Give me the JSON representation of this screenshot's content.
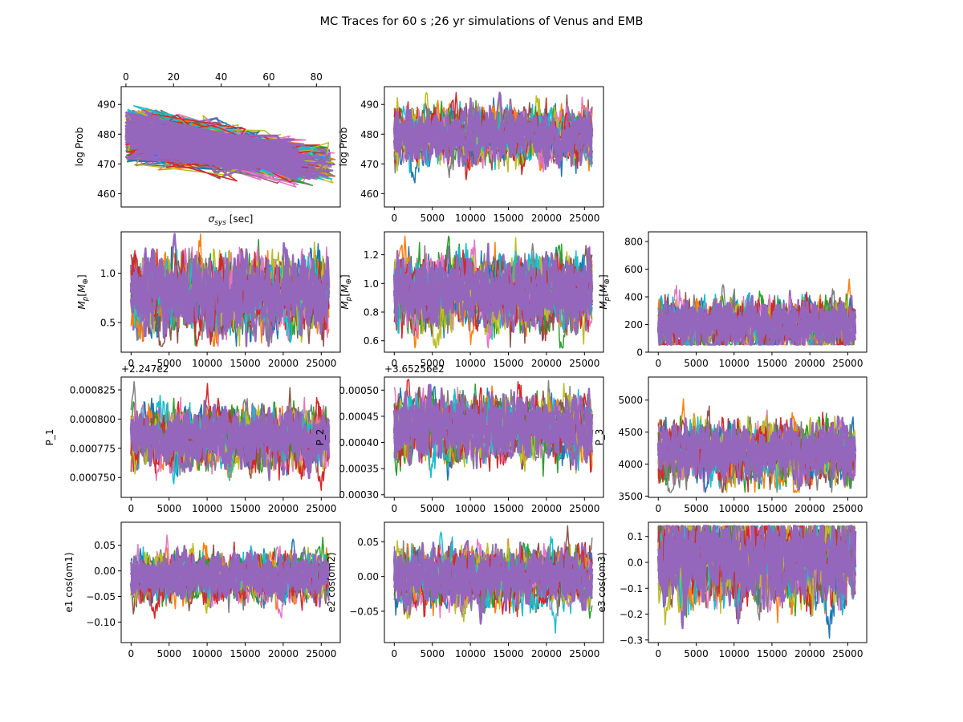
{
  "figure": {
    "title": "MC Traces for 60 s ;26 yr simulations of Venus and EMB"
  },
  "colors": {
    "palette": [
      "#1f77b4",
      "#ff7f0e",
      "#2ca02c",
      "#d62728",
      "#9467bd",
      "#8c564b",
      "#e377c2",
      "#7f7f7f",
      "#bcbd22",
      "#17becf"
    ],
    "frame": "#000000"
  },
  "chart_data": [
    {
      "id": "sigma-logprob",
      "type": "line",
      "description_of_marks": "log Prob plotted against sigma_sys for many walkers",
      "xlabel": "σsys [sec]",
      "xlabel_main": "σ",
      "xlabel_sub": "sys",
      "xlabel_rest": " [sec]",
      "ylabel": "log Prob",
      "xlim": [
        -2,
        90
      ],
      "ylim": [
        455.5,
        496
      ],
      "x_ticks": [
        0,
        20,
        40,
        60,
        80
      ],
      "x_ticks_position": "top",
      "y_ticks": [
        460,
        470,
        480,
        490
      ],
      "series_profile": {
        "x_range": [
          0,
          88
        ],
        "y_center_start": 480,
        "y_center_end": 469,
        "y_spread": 10,
        "y_peak": 494.5,
        "y_min": 458.5
      }
    },
    {
      "id": "trace-logprob",
      "type": "line",
      "ylabel": "log Prob",
      "xlim": [
        -1300,
        27500
      ],
      "ylim": [
        455.5,
        496
      ],
      "x_ticks": [
        0,
        5000,
        10000,
        15000,
        20000,
        25000
      ],
      "y_ticks": [
        460,
        470,
        480,
        490
      ],
      "series_profile": {
        "center": 480,
        "spread": 9,
        "min": 458,
        "max": 494
      }
    },
    {
      "id": "trace-mp1",
      "type": "line",
      "ylabel": "Mp[M⊕]",
      "xlim": [
        -1300,
        27500
      ],
      "ylim": [
        0.2,
        1.42
      ],
      "x_ticks": [
        0,
        5000,
        10000,
        15000,
        20000,
        25000
      ],
      "y_ticks": [
        0.5,
        1.0
      ],
      "y_tick_labels": [
        "0.5",
        "1.0"
      ],
      "series_profile": {
        "center": 0.8,
        "spread": 0.38,
        "min": 0.26,
        "max": 1.4
      }
    },
    {
      "id": "trace-mp2",
      "type": "line",
      "ylabel": "Mp[M⊕]",
      "xlim": [
        -1300,
        27500
      ],
      "ylim": [
        0.52,
        1.36
      ],
      "x_ticks": [
        0,
        5000,
        10000,
        15000,
        20000,
        25000
      ],
      "y_ticks": [
        0.6,
        0.8,
        1.0,
        1.2
      ],
      "y_tick_labels": [
        "0.6",
        "0.8",
        "1.0",
        "1.2"
      ],
      "series_profile": {
        "center": 0.95,
        "spread": 0.25,
        "min": 0.55,
        "max": 1.33
      }
    },
    {
      "id": "trace-mp3",
      "type": "line",
      "ylabel": "Mp[M⊕]",
      "xlim": [
        -1300,
        27500
      ],
      "ylim": [
        0,
        870
      ],
      "x_ticks": [
        0,
        5000,
        10000,
        15000,
        20000,
        25000
      ],
      "y_ticks": [
        0,
        200,
        400,
        600,
        800
      ],
      "y_tick_labels": [
        "0",
        "200",
        "400",
        "600",
        "800"
      ],
      "series_profile": {
        "center": 200,
        "spread": 180,
        "min": 55,
        "max": 840
      }
    },
    {
      "id": "trace-p1",
      "type": "line",
      "ylabel": "P_1",
      "offset_text": "+2.247e2",
      "xlim": [
        -1300,
        27500
      ],
      "ylim": [
        0.000733,
        0.000836
      ],
      "x_ticks": [
        0,
        5000,
        10000,
        15000,
        20000,
        25000
      ],
      "y_ticks": [
        0.00075,
        0.000775,
        0.0008,
        0.000825
      ],
      "y_tick_labels": [
        "0.000750",
        "0.000775",
        "0.000800",
        "0.000825"
      ],
      "series_profile": {
        "center": 0.000785,
        "spread": 2.5e-05,
        "min": 0.000737,
        "max": 0.000832
      }
    },
    {
      "id": "trace-p2",
      "type": "line",
      "ylabel": "P_2",
      "offset_text": "+3.65256e2",
      "xlim": [
        -1300,
        27500
      ],
      "ylim": [
        0.000295,
        0.000525
      ],
      "x_ticks": [
        0,
        5000,
        10000,
        15000,
        20000,
        25000
      ],
      "y_ticks": [
        0.0003,
        0.00035,
        0.0004,
        0.00045,
        0.0005
      ],
      "y_tick_labels": [
        "0.00030",
        "0.00035",
        "0.00040",
        "0.00045",
        "0.00050"
      ],
      "series_profile": {
        "center": 0.00043,
        "spread": 6e-05,
        "min": 0.000305,
        "max": 0.00052
      }
    },
    {
      "id": "trace-p3",
      "type": "line",
      "ylabel": "P_3",
      "xlim": [
        -1300,
        27500
      ],
      "ylim": [
        3480,
        5360
      ],
      "x_ticks": [
        0,
        5000,
        10000,
        15000,
        20000,
        25000
      ],
      "y_ticks": [
        3500,
        4000,
        4500,
        5000
      ],
      "y_tick_labels": [
        "3500",
        "4000",
        "4500",
        "5000"
      ],
      "series_profile": {
        "center": 4200,
        "spread": 450,
        "min": 3560,
        "max": 5270
      }
    },
    {
      "id": "trace-e1",
      "type": "line",
      "ylabel": "e1 cos(om1)",
      "xlim": [
        -1300,
        27500
      ],
      "ylim": [
        -0.14,
        0.095
      ],
      "x_ticks": [
        0,
        5000,
        10000,
        15000,
        20000,
        25000
      ],
      "y_ticks": [
        -0.1,
        -0.05,
        0.0,
        0.05
      ],
      "y_tick_labels": [
        "−0.10",
        "−0.05",
        "0.00",
        "0.05"
      ],
      "series_profile": {
        "center": -0.01,
        "spread": 0.045,
        "min": -0.13,
        "max": 0.08
      }
    },
    {
      "id": "trace-e2",
      "type": "line",
      "ylabel": "e2 cos(om2)",
      "xlim": [
        -1300,
        27500
      ],
      "ylim": [
        -0.095,
        0.078
      ],
      "x_ticks": [
        0,
        5000,
        10000,
        15000,
        20000,
        25000
      ],
      "y_ticks": [
        -0.05,
        0.0,
        0.05
      ],
      "y_tick_labels": [
        "−0.05",
        "0.00",
        "0.05"
      ],
      "series_profile": {
        "center": 0.0,
        "spread": 0.04,
        "min": -0.09,
        "max": 0.075
      }
    },
    {
      "id": "trace-e3",
      "type": "line",
      "ylabel": "e3 cos(om3)",
      "xlim": [
        -1300,
        27500
      ],
      "ylim": [
        -0.31,
        0.155
      ],
      "x_ticks": [
        0,
        5000,
        10000,
        15000,
        20000,
        25000
      ],
      "y_ticks": [
        -0.3,
        -0.2,
        -0.1,
        0.0,
        0.1
      ],
      "y_tick_labels": [
        "−0.3",
        "−0.2",
        "−0.1",
        "0.0",
        "0.1"
      ],
      "series_profile": {
        "center": 0.02,
        "spread": 0.17,
        "min": -0.3,
        "max": 0.14
      }
    }
  ]
}
